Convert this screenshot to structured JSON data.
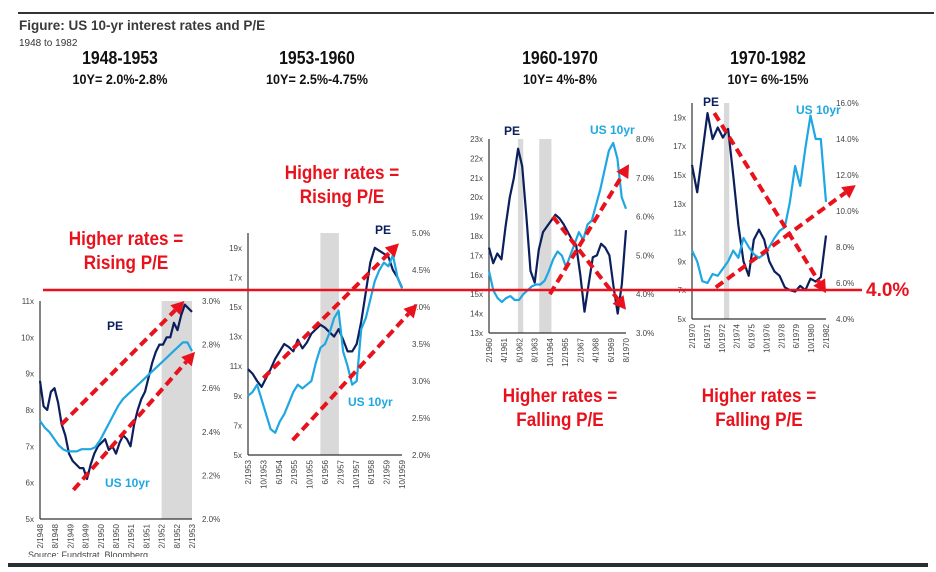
{
  "figure": {
    "title": "Figure: US 10-yr interest rates and P/E",
    "subtitle": "1948 to 1982",
    "source": "Source: Fundstrat, Bloomberg",
    "threshold_label": "4.0%",
    "colors": {
      "pe": "#0b1f5c",
      "ten_year": "#1ea7e1",
      "annotation": "#e8111c",
      "recession": "#d9d9d9"
    }
  },
  "chart_data": [
    {
      "type": "line",
      "title": "1948-1953",
      "subtitle": "10Y= 2.0%-2.8%",
      "annotation": "Higher rates = Rising P/E",
      "annotation_lines": [
        "Higher rates =",
        "Rising P/E"
      ],
      "x_ticks": [
        "2/1948",
        "8/1948",
        "2/1949",
        "8/1949",
        "2/1950",
        "8/1950",
        "2/1951",
        "8/1951",
        "2/1952",
        "8/1952",
        "2/1953"
      ],
      "y_left": {
        "ticks": [
          "5x",
          "6x",
          "7x",
          "8x",
          "9x",
          "10x",
          "11x"
        ],
        "range": [
          5,
          11
        ]
      },
      "y_right": {
        "ticks": [
          "2.0%",
          "2.2%",
          "2.4%",
          "2.6%",
          "2.8%",
          "3.0%"
        ],
        "range": [
          2.0,
          3.0
        ]
      },
      "recession_shading": [
        [
          8,
          10
        ]
      ],
      "series": [
        {
          "name": "PE",
          "label": "PE",
          "values": [
            8.8,
            8.1,
            8.0,
            8.5,
            8.6,
            8.2,
            7.6,
            7.3,
            6.8,
            6.6,
            6.5,
            6.4,
            6.4,
            6.1,
            6.5,
            6.8,
            7.0,
            7.1,
            7.2,
            6.9,
            7.0,
            6.8,
            7.1,
            7.3,
            7.2,
            7.0,
            7.6,
            8.0,
            8.3,
            8.5,
            8.9,
            9.3,
            9.6,
            9.8,
            9.8,
            10.0,
            10.0,
            10.4,
            10.2,
            10.6,
            10.9,
            10.8,
            10.7
          ]
        },
        {
          "name": "US 10yr",
          "label": "US 10yr",
          "values": [
            2.45,
            2.42,
            2.4,
            2.37,
            2.34,
            2.32,
            2.31,
            2.31,
            2.31,
            2.32,
            2.32,
            2.32,
            2.33,
            2.36,
            2.4,
            2.44,
            2.48,
            2.52,
            2.55,
            2.57,
            2.59,
            2.61,
            2.63,
            2.65,
            2.67,
            2.69,
            2.71,
            2.73,
            2.75,
            2.77,
            2.79,
            2.81,
            2.81,
            2.77
          ]
        }
      ],
      "arrows": [
        {
          "direction": "up",
          "from": [
            1.4,
            7.6
          ],
          "to": [
            9.5,
            11.0
          ]
        },
        {
          "direction": "up",
          "from": [
            2.2,
            5.8
          ],
          "to": [
            10.2,
            9.6
          ]
        }
      ],
      "series_label_positions": "PE upper-left, US 10yr lower-left"
    },
    {
      "type": "line",
      "title": "1953-1960",
      "subtitle": "10Y= 2.5%-4.75%",
      "annotation": "Higher rates = Rising P/E",
      "annotation_lines": [
        "Higher rates =",
        "Rising P/E"
      ],
      "x_ticks": [
        "2/1953",
        "10/1953",
        "6/1954",
        "2/1955",
        "10/1955",
        "6/1956",
        "2/1957",
        "10/1957",
        "6/1958",
        "2/1959",
        "10/1959"
      ],
      "y_left": {
        "ticks": [
          "5x",
          "7x",
          "9x",
          "11x",
          "13x",
          "15x",
          "17x",
          "19x"
        ],
        "range": [
          5,
          20
        ]
      },
      "y_right": {
        "ticks": [
          "2.0%",
          "2.5%",
          "3.0%",
          "3.5%",
          "4.0%",
          "4.5%",
          "5.0%"
        ],
        "range": [
          2.0,
          5.0
        ]
      },
      "recession_shading": [
        [
          4.7,
          5.9
        ]
      ],
      "series": [
        {
          "name": "PE",
          "label": "PE",
          "values": [
            10.8,
            10.5,
            10.0,
            9.6,
            10.2,
            10.8,
            11.5,
            12.0,
            12.5,
            12.3,
            12.0,
            12.8,
            12.2,
            12.6,
            13.2,
            13.5,
            13.8,
            13.6,
            13.3,
            13.0,
            13.5,
            12.8,
            12.0,
            12.0,
            12.5,
            14.0,
            16.0,
            18.0,
            19.0,
            18.8,
            18.6,
            18.4,
            17.5,
            17.0,
            16.3
          ]
        },
        {
          "name": "US 10yr",
          "label": "US 10yr",
          "values": [
            2.8,
            2.85,
            2.95,
            2.75,
            2.55,
            2.35,
            2.3,
            2.45,
            2.55,
            2.7,
            2.85,
            2.95,
            2.9,
            2.95,
            3.0,
            3.25,
            3.45,
            3.5,
            3.65,
            3.85,
            3.95,
            3.4,
            3.2,
            2.95,
            3.0,
            3.7,
            3.85,
            4.1,
            4.35,
            4.5,
            4.6,
            4.55,
            4.7,
            4.4,
            4.25
          ]
        }
      ],
      "arrows": [
        {
          "direction": "up",
          "from": [
            1.0,
            10.2
          ],
          "to": [
            9.8,
            19.3
          ]
        },
        {
          "direction": "up",
          "from": [
            2.9,
            6.0
          ],
          "to": [
            11.0,
            15.2
          ]
        }
      ]
    },
    {
      "type": "line",
      "title": "1960-1970",
      "subtitle": "10Y= 4%-8%",
      "annotation": "Higher rates = Falling P/E",
      "annotation_lines": [
        "Higher rates =",
        "Falling P/E"
      ],
      "x_ticks": [
        "2/1960",
        "4/1961",
        "6/1962",
        "8/1963",
        "10/1964",
        "12/1965",
        "2/1967",
        "4/1968",
        "6/1969",
        "8/1970"
      ],
      "y_left": {
        "ticks": [
          "13x",
          "14x",
          "15x",
          "16x",
          "17x",
          "18x",
          "19x",
          "20x",
          "21x",
          "22x",
          "23x"
        ],
        "range": [
          13,
          23
        ]
      },
      "y_right": {
        "ticks": [
          "3.0%",
          "4.0%",
          "5.0%",
          "6.0%",
          "7.0%",
          "8.0%"
        ],
        "range": [
          3.0,
          8.0
        ]
      },
      "recession_shading": [
        [
          1.9,
          2.25
        ],
        [
          3.3,
          4.1
        ]
      ],
      "series": [
        {
          "name": "PE",
          "label": "PE",
          "values": [
            17.4,
            16.6,
            17.1,
            16.8,
            18.5,
            20.0,
            21.0,
            22.5,
            21.6,
            19.0,
            16.2,
            15.6,
            17.3,
            18.2,
            18.5,
            18.8,
            19.1,
            18.9,
            18.6,
            18.2,
            17.8,
            17.5,
            16.0,
            14.1,
            15.5,
            16.9,
            17.0,
            17.6,
            17.4,
            17.0,
            15.4,
            14.0,
            15.5,
            18.3
          ]
        },
        {
          "name": "US 10yr",
          "label": "US 10yr",
          "values": [
            4.6,
            4.1,
            3.9,
            3.8,
            3.9,
            3.95,
            3.85,
            3.85,
            4.0,
            4.1,
            4.2,
            4.25,
            4.25,
            4.35,
            4.6,
            4.9,
            5.1,
            5.0,
            4.7,
            5.0,
            5.3,
            5.6,
            5.4,
            5.8,
            5.9,
            6.3,
            6.7,
            7.2,
            7.7,
            7.9,
            7.5,
            6.5,
            6.2
          ]
        }
      ],
      "arrows": [
        {
          "direction": "down",
          "from": [
            4.2,
            19.0
          ],
          "to": [
            9.0,
            14.2
          ]
        },
        {
          "direction": "up",
          "from": [
            4.0,
            15.0
          ],
          "to": [
            9.2,
            21.7
          ]
        }
      ],
      "series_label_positions": "PE top-left, US 10yr top-right"
    },
    {
      "type": "line",
      "title": "1970-1982",
      "subtitle": "10Y= 6%-15%",
      "annotation": "Higher rates = Falling P/E",
      "annotation_lines": [
        "Higher rates =",
        "Falling P/E"
      ],
      "x_ticks": [
        "2/1970",
        "6/1971",
        "10/1972",
        "2/1974",
        "6/1975",
        "10/1976",
        "2/1978",
        "6/1979",
        "10/1980",
        "2/1982"
      ],
      "y_left": {
        "ticks": [
          "5x",
          "7x",
          "9x",
          "11x",
          "13x",
          "15x",
          "17x",
          "19x"
        ],
        "range": [
          5,
          20
        ]
      },
      "y_right": {
        "ticks": [
          "4.0%",
          "6.0%",
          "8.0%",
          "10.0%",
          "12.0%",
          "14.0%",
          "16.0%"
        ],
        "range": [
          4.0,
          16.0
        ]
      },
      "recession_shading": [
        [
          2.15,
          2.5
        ]
      ],
      "series": [
        {
          "name": "PE",
          "label": "PE",
          "values": [
            15.7,
            13.8,
            16.5,
            19.3,
            17.5,
            18.3,
            17.6,
            18.2,
            15.0,
            11.5,
            9.0,
            8.0,
            10.5,
            11.2,
            10.5,
            9.0,
            8.3,
            8.0,
            7.2,
            7.0,
            6.9,
            7.3,
            7.0,
            7.8,
            7.6,
            7.9,
            10.8
          ]
        },
        {
          "name": "US 10yr",
          "label": "US 10yr",
          "values": [
            7.8,
            7.2,
            6.1,
            6.0,
            6.5,
            6.4,
            6.8,
            7.2,
            7.8,
            7.4,
            8.5,
            8.0,
            7.6,
            7.4,
            7.6,
            8.0,
            8.5,
            8.9,
            9.1,
            10.5,
            12.5,
            11.4,
            13.5,
            15.3,
            14.0,
            14.0,
            10.5
          ]
        }
      ],
      "arrows": [
        {
          "direction": "down",
          "from": [
            1.5,
            19.3
          ],
          "to": [
            9.0,
            6.8
          ]
        },
        {
          "direction": "up",
          "from": [
            1.6,
            7.2
          ],
          "to": [
            11.0,
            14.3
          ]
        }
      ],
      "series_label_positions": "PE top-left, US 10yr top-right"
    }
  ]
}
